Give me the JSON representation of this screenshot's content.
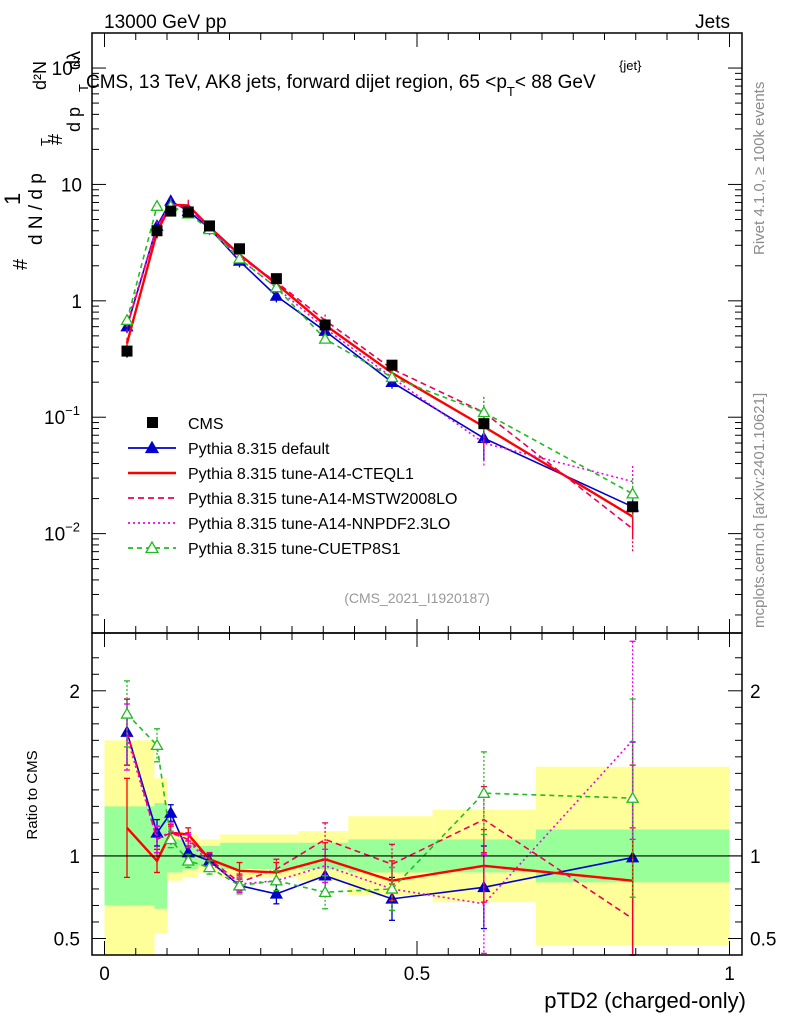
{
  "header": {
    "left": "13000 GeV pp",
    "right": "Jets",
    "plot_title_main": "CMS, 13 TeV, AK8 jets, forward dijet region, 65 <p",
    "plot_title_sub": "T",
    "plot_title_sup": "{jet}",
    "plot_title_end": "< 88 GeV"
  },
  "side_labels": {
    "rivet": "Rivet 4.1.0, ≥ 100k events",
    "mcplots": "mcplots.cern.ch [arXiv:2401.10621]"
  },
  "analysis_tag": "(CMS_2021_I1920187)",
  "axis": {
    "xlabel": "pTD2 (charged-only)",
    "ratio_ylabel": "Ratio to CMS",
    "main_ylabel_parts": [
      "#",
      "1",
      "d N / d p",
      "T",
      "#",
      "d²N",
      "d p",
      "T",
      "dλ"
    ],
    "xticks": [
      {
        "value": 0,
        "label": "0"
      },
      {
        "value": 0.5,
        "label": "0.5"
      },
      {
        "value": 1,
        "label": "1"
      }
    ],
    "main_yticks": [
      {
        "value": 0.01,
        "base": "10",
        "exp": "−2"
      },
      {
        "value": 0.1,
        "base": "10",
        "exp": "−1"
      },
      {
        "value": 1,
        "base": "1",
        "exp": ""
      },
      {
        "value": 10,
        "base": "10",
        "exp": ""
      },
      {
        "value": 100,
        "base": "10",
        "exp": "2"
      }
    ],
    "ratio_yticks": [
      {
        "value": 0.5,
        "label": "0.5"
      },
      {
        "value": 1,
        "label": "1"
      },
      {
        "value": 2,
        "label": "2"
      }
    ]
  },
  "chart_data": {
    "type": "line",
    "xlim": [
      -0.02,
      1.02
    ],
    "main_ylim": [
      0.0014,
      200
    ],
    "main_yscale": "log",
    "ratio_ylim": [
      0.4,
      2.35
    ],
    "bins": [
      0,
      0.08,
      0.1,
      0.125,
      0.15,
      0.185,
      0.24,
      0.31,
      0.39,
      0.525,
      0.69,
      1.0
    ],
    "x": [
      0.036,
      0.084,
      0.106,
      0.134,
      0.168,
      0.216,
      0.275,
      0.353,
      0.46,
      0.607,
      0.845
    ],
    "data": {
      "name": "CMS",
      "values": [
        0.37,
        4.0,
        5.9,
        5.8,
        4.4,
        2.8,
        1.55,
        0.62,
        0.28,
        0.088,
        0.017
      ],
      "err_inner": [
        0.3,
        0.32,
        0.1,
        0.08,
        0.06,
        0.08,
        0.08,
        0.08,
        0.1,
        0.1,
        0.16
      ],
      "err_outer": [
        0.4,
        0.15,
        0.05,
        0.05,
        0.04,
        0.05,
        0.05,
        0.07,
        0.14,
        0.18,
        0.38
      ]
    },
    "series": [
      {
        "name": "Pythia 8.315 default",
        "color": "#0000cc",
        "dash": "",
        "marker": "triangle-filled",
        "values": [
          0.6,
          4.4,
          7.2,
          5.9,
          4.2,
          2.2,
          1.1,
          0.55,
          0.2,
          0.066,
          0.017
        ],
        "ratio": [
          1.75,
          1.14,
          1.26,
          1.02,
          0.97,
          0.82,
          0.77,
          0.88,
          0.74,
          0.81,
          0.99
        ],
        "ratio_err": [
          0.2,
          0.08,
          0.05,
          0.04,
          0.04,
          0.04,
          0.06,
          0.1,
          0.13,
          0.25,
          0.7
        ]
      },
      {
        "name": "Pythia 8.315 tune-A14-CTEQL1",
        "color": "#ff0000",
        "dash": "",
        "marker": "none",
        "values": [
          0.43,
          3.9,
          6.7,
          6.6,
          4.3,
          2.5,
          1.4,
          0.62,
          0.24,
          0.083,
          0.014
        ],
        "ratio": [
          1.17,
          0.97,
          1.14,
          1.13,
          0.98,
          0.91,
          0.9,
          0.98,
          0.85,
          0.94,
          0.85
        ],
        "ratio_err": [
          0.3,
          0.07,
          0.04,
          0.04,
          0.04,
          0.05,
          0.06,
          0.1,
          0.12,
          0.22,
          0.7
        ]
      },
      {
        "name": "Pythia 8.315 tune-A14-MSTW2008LO",
        "color": "#ee0055",
        "dash": "6,4",
        "marker": "none",
        "values": [
          0.6,
          4.3,
          6.7,
          6.3,
          4.3,
          2.4,
          1.45,
          0.68,
          0.26,
          0.11,
          0.011
        ],
        "ratio": [
          1.75,
          1.1,
          1.14,
          1.1,
          0.98,
          0.84,
          0.92,
          1.1,
          0.95,
          1.22,
          0.62
        ],
        "ratio_err": [
          0.2,
          0.08,
          0.05,
          0.04,
          0.04,
          0.05,
          0.06,
          0.1,
          0.12,
          0.2,
          0.55
        ]
      },
      {
        "name": "Pythia 8.315 tune-A14-NNPDF2.3LO",
        "color": "#ee00ee",
        "dash": "2,3",
        "marker": "none",
        "values": [
          0.65,
          4.3,
          6.8,
          6.3,
          4.2,
          2.3,
          1.3,
          0.58,
          0.22,
          0.06,
          0.028
        ],
        "ratio": [
          1.72,
          1.1,
          1.15,
          1.09,
          0.96,
          0.83,
          0.85,
          0.94,
          0.8,
          0.71,
          1.7
        ],
        "ratio_err": [
          0.2,
          0.08,
          0.05,
          0.04,
          0.04,
          0.05,
          0.06,
          0.1,
          0.13,
          0.3,
          0.6
        ]
      },
      {
        "name": "Pythia 8.315 tune-CUETP8S1",
        "color": "#22bb22",
        "dash": "5,4",
        "marker": "triangle-open",
        "values": [
          0.68,
          6.5,
          6.5,
          5.6,
          4.1,
          2.3,
          1.3,
          0.47,
          0.22,
          0.11,
          0.022
        ],
        "ratio": [
          1.86,
          1.67,
          1.1,
          0.97,
          0.93,
          0.82,
          0.85,
          0.78,
          0.8,
          1.38,
          1.35
        ],
        "ratio_err": [
          0.2,
          0.1,
          0.05,
          0.04,
          0.04,
          0.05,
          0.06,
          0.1,
          0.13,
          0.25,
          0.6
        ]
      }
    ]
  }
}
